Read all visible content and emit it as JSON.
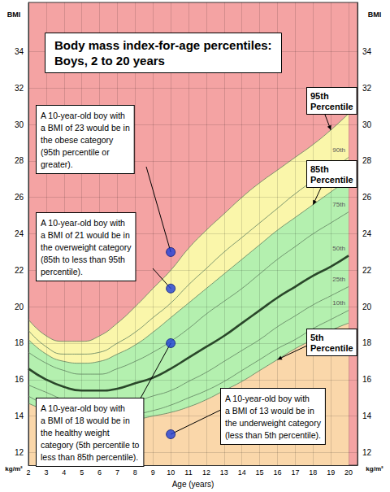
{
  "chart_data": {
    "type": "line",
    "title": "Body mass index-for-age percentiles:",
    "subtitle": "Boys, 2 to 20 years",
    "xlabel": "Age (years)",
    "ylabel": "BMI",
    "yunit": "kg/m²",
    "x": [
      2,
      3,
      4,
      5,
      6,
      7,
      8,
      9,
      10,
      11,
      12,
      13,
      14,
      15,
      16,
      17,
      18,
      19,
      20
    ],
    "xlim": [
      2,
      20.5
    ],
    "xticks": [
      2,
      3,
      4,
      5,
      6,
      7,
      8,
      9,
      10,
      11,
      12,
      13,
      14,
      15,
      16,
      17,
      18,
      19,
      20
    ],
    "ylim": [
      11.3,
      36.7
    ],
    "yticks": [
      12,
      14,
      16,
      18,
      20,
      22,
      24,
      26,
      28,
      30,
      32,
      34
    ],
    "grid": true,
    "series": [
      {
        "name": "5th",
        "color": "#5e7f5e",
        "line_style": "solid",
        "values": [
          14.7,
          14.3,
          14.0,
          13.8,
          13.7,
          13.7,
          13.8,
          14.0,
          14.2,
          14.5,
          14.9,
          15.4,
          15.9,
          16.5,
          17.1,
          17.7,
          18.2,
          18.7,
          19.1
        ]
      },
      {
        "name": "10th",
        "color": "#5e7f5e",
        "line_style": "solid",
        "values": [
          15.1,
          14.6,
          14.3,
          14.1,
          14.0,
          14.0,
          14.1,
          14.3,
          14.6,
          15.0,
          15.4,
          15.9,
          16.5,
          17.1,
          17.7,
          18.2,
          18.8,
          19.3,
          19.8
        ]
      },
      {
        "name": "25th",
        "color": "#5e7f5e",
        "line_style": "solid",
        "values": [
          15.7,
          15.3,
          14.9,
          14.7,
          14.6,
          14.6,
          14.8,
          15.1,
          15.4,
          15.9,
          16.4,
          17.0,
          17.6,
          18.2,
          18.9,
          19.5,
          20.1,
          20.6,
          21.1
        ]
      },
      {
        "name": "50th",
        "color": "#2a472a",
        "line_style": "bold",
        "values": [
          16.6,
          16.0,
          15.6,
          15.4,
          15.4,
          15.5,
          15.8,
          16.1,
          16.6,
          17.2,
          17.8,
          18.4,
          19.1,
          19.8,
          20.5,
          21.1,
          21.7,
          22.2,
          22.8
        ]
      },
      {
        "name": "75th",
        "color": "#5e7f5e",
        "line_style": "solid",
        "values": [
          17.5,
          16.9,
          16.5,
          16.3,
          16.3,
          16.6,
          17.0,
          17.5,
          18.1,
          18.8,
          19.6,
          20.3,
          21.0,
          21.8,
          22.6,
          23.3,
          24.0,
          24.6,
          25.2
        ]
      },
      {
        "name": "85th",
        "color": "#5e7f5e",
        "line_style": "solid",
        "values": [
          18.2,
          17.4,
          17.0,
          16.9,
          17.0,
          17.4,
          17.9,
          18.6,
          19.4,
          20.2,
          21.0,
          21.8,
          22.6,
          23.4,
          24.2,
          24.9,
          25.6,
          26.3,
          27.0
        ]
      },
      {
        "name": "90th",
        "color": "#5e7f5e",
        "line_style": "solid",
        "values": [
          18.7,
          17.8,
          17.4,
          17.4,
          17.5,
          18.0,
          18.6,
          19.4,
          20.2,
          21.2,
          22.1,
          23.0,
          23.8,
          24.6,
          25.4,
          26.2,
          26.9,
          27.5,
          28.2
        ]
      },
      {
        "name": "95th",
        "color": "#5e7f5e",
        "line_style": "solid",
        "values": [
          19.3,
          18.4,
          18.1,
          18.1,
          18.4,
          19.1,
          20.0,
          21.0,
          22.0,
          23.2,
          24.2,
          25.1,
          26.0,
          26.8,
          27.5,
          28.2,
          28.9,
          29.7,
          30.6
        ]
      }
    ],
    "bands": [
      {
        "to": "5th",
        "color": "#fad7aa"
      },
      {
        "to": "85th",
        "color": "#b4f0af"
      },
      {
        "to": "95th",
        "color": "#faf6aa"
      },
      {
        "to": null,
        "color": "#f4a3a3"
      }
    ],
    "callouts": [
      {
        "text": "95th\nPercentile",
        "series": "95th"
      },
      {
        "text": "85th\nPercentile",
        "series": "85th"
      },
      {
        "text": "5th\nPercentile",
        "series": "5th"
      }
    ],
    "annotations": {
      "color": "#1f3fd8",
      "marker": "circle",
      "items": [
        {
          "text": "A 10-year-old boy with\na BMI of 23 would be in\nthe obese category\n(95th percentile or\ngreater).",
          "x": 10,
          "y": 23
        },
        {
          "text": "A 10-year-old boy with\na BMI of 21 would be in\nthe overweight category\n(85th to less than 95th\npercentile).",
          "x": 10,
          "y": 21
        },
        {
          "text": "A 10-year-old boy with\na BMI of 18 would be in\nthe healthy weight\ncategory (5th percentile to\nless than 85th percentile).",
          "x": 10,
          "y": 18
        },
        {
          "text": "A 10-year-old boy with\na BMI of 13 would be in\nthe underweight category\n(less than 5th percentile).",
          "x": 10,
          "y": 13
        }
      ]
    }
  }
}
